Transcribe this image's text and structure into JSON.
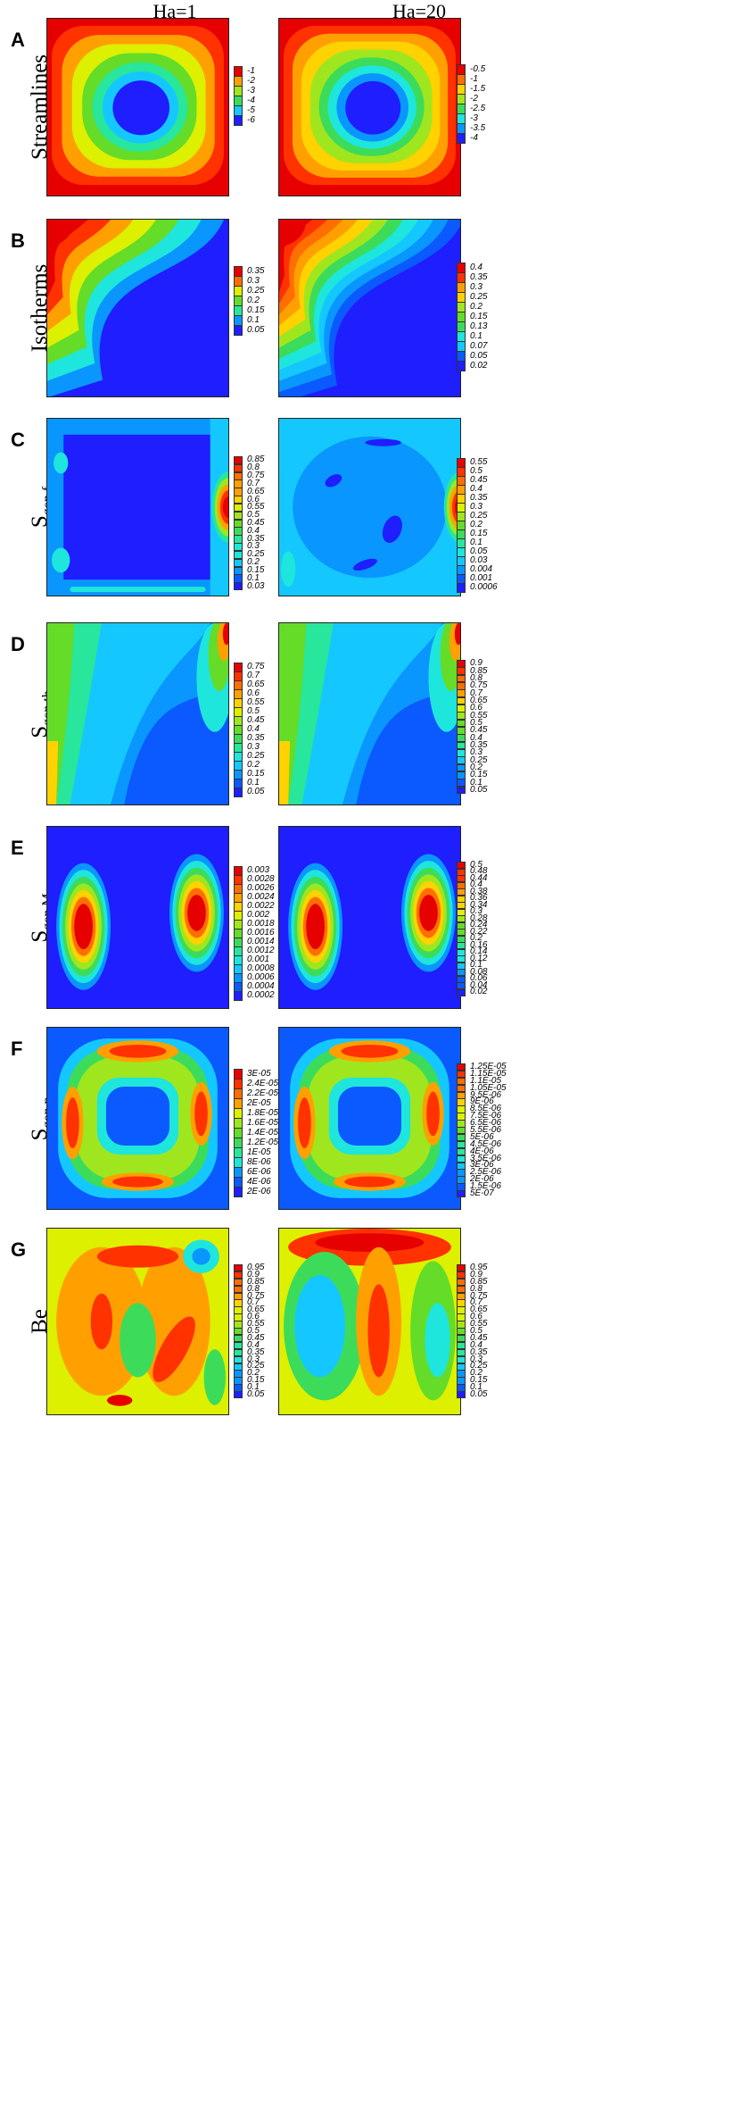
{
  "columns": [
    "Ha=1",
    "Ha=20"
  ],
  "rows": [
    {
      "id": "A",
      "label": "Streamlines",
      "sub": "",
      "legends": [
        [
          "-1",
          "-2",
          "-3",
          "-4",
          "-5",
          "-6"
        ],
        [
          "-0.5",
          "-1",
          "-1.5",
          "-2",
          "-2.5",
          "-3",
          "-3.5",
          "-4"
        ]
      ]
    },
    {
      "id": "B",
      "label": "Isotherms",
      "sub": "",
      "legends": [
        [
          "0.35",
          "0.3",
          "0.25",
          "0.2",
          "0.15",
          "0.1",
          "0.05"
        ],
        [
          "0.4",
          "0.35",
          "0.3",
          "0.25",
          "0.2",
          "0.15",
          "0.13",
          "0.1",
          "0.07",
          "0.05",
          "0.02"
        ]
      ]
    },
    {
      "id": "C",
      "label": "S",
      "sub": "gen,f",
      "legends": [
        [
          "0.85",
          "0.8",
          "0.75",
          "0.7",
          "0.65",
          "0.6",
          "0.55",
          "0.5",
          "0.45",
          "0.4",
          "0.35",
          "0.3",
          "0.25",
          "0.2",
          "0.15",
          "0.1",
          "0.03"
        ],
        [
          "0.55",
          "0.5",
          "0.45",
          "0.4",
          "0.35",
          "0.3",
          "0.25",
          "0.2",
          "0.15",
          "0.1",
          "0.05",
          "0.03",
          "0.004",
          "0.001",
          "0.0006"
        ]
      ]
    },
    {
      "id": "D",
      "label": "S",
      "sub": "gen,th",
      "legends": [
        [
          "0.75",
          "0.7",
          "0.65",
          "0.6",
          "0.55",
          "0.5",
          "0.45",
          "0.4",
          "0.35",
          "0.3",
          "0.25",
          "0.2",
          "0.15",
          "0.1",
          "0.05"
        ],
        [
          "0.9",
          "0.85",
          "0.8",
          "0.75",
          "0.7",
          "0.65",
          "0.6",
          "0.55",
          "0.5",
          "0.45",
          "0.4",
          "0.35",
          "0.3",
          "0.25",
          "0.2",
          "0.15",
          "0.1",
          "0.05"
        ]
      ]
    },
    {
      "id": "E",
      "label": "S",
      "sub": "gen,M",
      "legends": [
        [
          "0.003",
          "0.0028",
          "0.0026",
          "0.0024",
          "0.0022",
          "0.002",
          "0.0018",
          "0.0016",
          "0.0014",
          "0.0012",
          "0.001",
          "0.0008",
          "0.0006",
          "0.0004",
          "0.0002"
        ],
        [
          "0.5",
          "0.48",
          "0.44",
          "0.4",
          "0.38",
          "0.36",
          "0.34",
          "0.3",
          "0.28",
          "0.24",
          "0.22",
          "0.2",
          "0.16",
          "0.14",
          "0.12",
          "0.1",
          "0.08",
          "0.06",
          "0.04",
          "0.02"
        ]
      ]
    },
    {
      "id": "F",
      "label": "S",
      "sub": "gen,p",
      "legends": [
        [
          "3E-05",
          "2.4E-05",
          "2.2E-05",
          "2E-05",
          "1.8E-05",
          "1.6E-05",
          "1.4E-05",
          "1.2E-05",
          "1E-05",
          "8E-06",
          "6E-06",
          "4E-06",
          "2E-06"
        ],
        [
          "1.25E-05",
          "1.15E-05",
          "1.1E-05",
          "1.05E-05",
          "9.5E-06",
          "9E-06",
          "8.5E-06",
          "7.5E-06",
          "6.5E-06",
          "5.5E-06",
          "5E-06",
          "4.5E-06",
          "4E-06",
          "3.5E-06",
          "3E-06",
          "2.5E-06",
          "2E-06",
          "1.5E-06",
          "5E-07"
        ]
      ]
    },
    {
      "id": "G",
      "label": "Be",
      "sub": "",
      "legends": [
        [
          "0.95",
          "0.9",
          "0.85",
          "0.8",
          "0.75",
          "0.7",
          "0.65",
          "0.6",
          "0.55",
          "0.5",
          "0.45",
          "0.4",
          "0.35",
          "0.3",
          "0.25",
          "0.2",
          "0.15",
          "0.1",
          "0.05"
        ],
        [
          "0.95",
          "0.9",
          "0.85",
          "0.8",
          "0.75",
          "0.7",
          "0.65",
          "0.6",
          "0.55",
          "0.5",
          "0.45",
          "0.4",
          "0.35",
          "0.3",
          "0.25",
          "0.2",
          "0.15",
          "0.1",
          "0.05"
        ]
      ]
    }
  ],
  "colors": {
    "scale": [
      "#1e1eff",
      "#0a5aff",
      "#0a96ff",
      "#14c8ff",
      "#1ee6dc",
      "#28e69b",
      "#3cdc5a",
      "#64dc28",
      "#a0e61e",
      "#dcf000",
      "#ffd200",
      "#ffa000",
      "#ff6e00",
      "#ff3200",
      "#e60000"
    ]
  }
}
